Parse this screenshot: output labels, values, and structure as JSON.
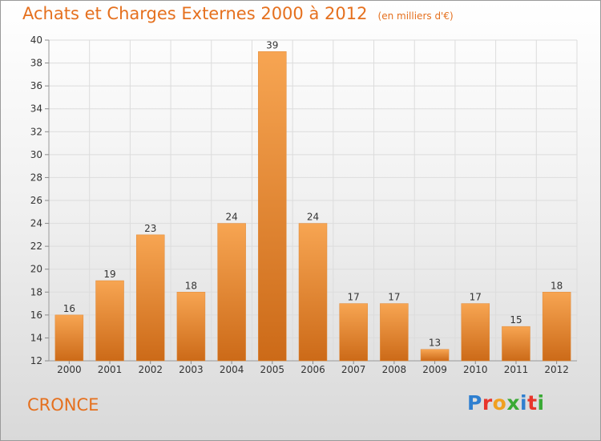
{
  "title": "Achats et Charges Externes 2000 à 2012",
  "unit_note": "(en milliers d'€)",
  "place_name": "CRONCE",
  "logo": {
    "letters": [
      "P",
      "r",
      "o",
      "x",
      "i",
      "t",
      "i"
    ],
    "colors": [
      "#2e7fd0",
      "#e8352b",
      "#f0a020",
      "#3aaa35",
      "#2e7fd0",
      "#e8352b",
      "#3aaa35"
    ]
  },
  "colors": {
    "bar_top": "#f7a552",
    "bar_bottom": "#cc6a18",
    "text_accent": "#e5701e"
  },
  "chart_data": {
    "type": "bar",
    "categories": [
      "2000",
      "2001",
      "2002",
      "2003",
      "2004",
      "2005",
      "2006",
      "2007",
      "2008",
      "2009",
      "2010",
      "2011",
      "2012"
    ],
    "values": [
      16,
      19,
      23,
      18,
      24,
      39,
      24,
      17,
      17,
      13,
      17,
      15,
      18
    ],
    "ylim": [
      12,
      40
    ],
    "yticks": [
      12,
      14,
      16,
      18,
      20,
      22,
      24,
      26,
      28,
      30,
      32,
      34,
      36,
      38,
      40
    ],
    "grid": true
  }
}
